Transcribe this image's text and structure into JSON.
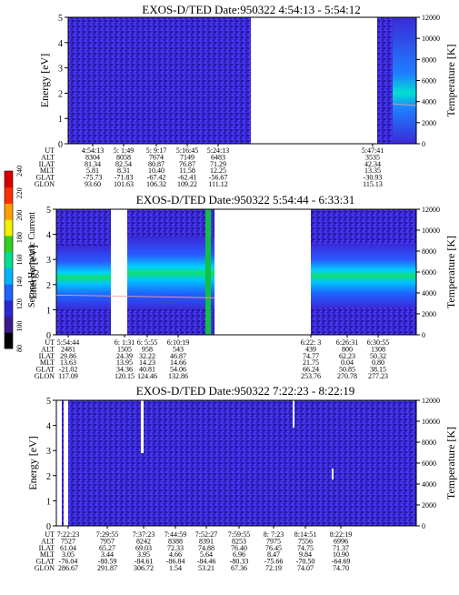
{
  "chart_data": {
    "type": "heatmap",
    "colorbar": {
      "label": "Second Harmonic Current",
      "ticks": [
        "80",
        "100",
        "120",
        "140",
        "160",
        "180",
        "200",
        "220",
        "240"
      ],
      "colors": [
        "#000000",
        "#3a1a8a",
        "#2a2ad0",
        "#1e64ff",
        "#00b4ff",
        "#00e090",
        "#30d020",
        "#f0f000",
        "#ffa000",
        "#ff3000",
        "#d80000"
      ]
    },
    "panels": [
      {
        "title": "EXOS-D/TED   Date:950322   4:54:13 - 5:54:12",
        "ylabel": "Energy [eV]",
        "y2label": "Temperature [K]",
        "ylim": [
          0,
          5
        ],
        "y2lim": [
          0,
          12000
        ],
        "yticks": [
          "0",
          "1",
          "2",
          "3",
          "4",
          "5"
        ],
        "y2ticks": [
          "0",
          "2000",
          "4000",
          "6000",
          "8000",
          "10000",
          "12000"
        ],
        "ephem_labels": [
          "UT",
          "ALT",
          "ILAT",
          "MLT",
          "GLAT",
          "GLON"
        ],
        "ephem_cols": [
          [
            "4:54:13",
            "8304",
            "81.34",
            "5.81",
            "-75.73",
            "93.60"
          ],
          [
            "5: 1:49",
            "8058",
            "82.54",
            "8.31",
            "-71.83",
            "101.63"
          ],
          [
            "5: 9:17",
            "7674",
            "80.87",
            "10.40",
            "-67.42",
            "106.32"
          ],
          [
            "5:16:45",
            "7149",
            "76.87",
            "11.58",
            "-62.41",
            "109.22"
          ],
          [
            "5:24:13",
            "6483",
            "71.29",
            "12.25",
            "-56.67",
            "111.12"
          ],
          [
            "5:47:41",
            "3535",
            "42.34",
            "13.35",
            "-30.93",
            "115.13"
          ]
        ]
      },
      {
        "title": "EXOS-D/TED   Date:950322   5:54:44 - 6:33:31",
        "ylabel": "Energy [eV]",
        "y2label": "Temperature [K]",
        "ylim": [
          0,
          5
        ],
        "y2lim": [
          0,
          12000
        ],
        "yticks": [
          "0",
          "1",
          "2",
          "3",
          "4",
          "5"
        ],
        "y2ticks": [
          "0",
          "2000",
          "4000",
          "6000",
          "8000",
          "10000",
          "12000"
        ],
        "ephem_labels": [
          "UT",
          "ALT",
          "ILAT",
          "MLT",
          "GLAT",
          "GLON"
        ],
        "ephem_cols": [
          [
            "5:54:44",
            "2481",
            "29.86",
            "13.63",
            "-21.02",
            "117.09"
          ],
          [
            "6: 1:31",
            "1505",
            "24.39",
            "13.95",
            "34.36",
            "120.15"
          ],
          [
            "6: 5:55",
            "958",
            "32.22",
            "14.23",
            "40.81",
            "124.46"
          ],
          [
            "6:10:19",
            "543",
            "46.87",
            "14.66",
            "54.06",
            "132.86"
          ],
          [
            "6:22: 3",
            "439",
            "74.77",
            "21.75",
            "66.24",
            "253.76"
          ],
          [
            "6:26:31",
            "800",
            "62.23",
            "0.04",
            "50.85",
            "270.78"
          ],
          [
            "6:30:55",
            "1308",
            "50.32",
            "0.80",
            "38.15",
            "277.23"
          ]
        ]
      },
      {
        "title": "EXOS-D/TED   Date:950322   7:22:23 - 8:22:19",
        "ylabel": "Energy [eV]",
        "y2label": "Temperature [K]",
        "ylim": [
          0,
          5
        ],
        "y2lim": [
          0,
          12000
        ],
        "yticks": [
          "0",
          "1",
          "2",
          "3",
          "4",
          "5"
        ],
        "y2ticks": [
          "0",
          "2000",
          "4000",
          "6000",
          "8000",
          "10000",
          "12000"
        ],
        "ephem_labels": [
          "UT",
          "ALT",
          "ILAT",
          "MLT",
          "GLAT",
          "GLON"
        ],
        "ephem_cols": [
          [
            "7:22:23",
            "7527",
            "61.04",
            "3.05",
            "-76.04",
            "286.67"
          ],
          [
            "7:29:55",
            "7957",
            "65.27",
            "3.44",
            "-80.59",
            "291.87"
          ],
          [
            "7:37:23",
            "8242",
            "69.03",
            "3.95",
            "-84.61",
            "306.72"
          ],
          [
            "7:44:59",
            "8388",
            "72.33",
            "4.66",
            "-86.84",
            "1.54"
          ],
          [
            "7:52:27",
            "8391",
            "74.88",
            "5.64",
            "-84.46",
            "53.21"
          ],
          [
            "7:59:55",
            "8253",
            "76.40",
            "6.96",
            "-80.33",
            "67.36"
          ],
          [
            "8: 7:23",
            "7975",
            "76.45",
            "8.47",
            "-75.66",
            "72.19"
          ],
          [
            "8:14:51",
            "7556",
            "74.75",
            "9.84",
            "-70.50",
            "74.07"
          ],
          [
            "8:22:19",
            "6996",
            "71.37",
            "10.90",
            "-64.69",
            "74.70"
          ]
        ]
      }
    ]
  }
}
